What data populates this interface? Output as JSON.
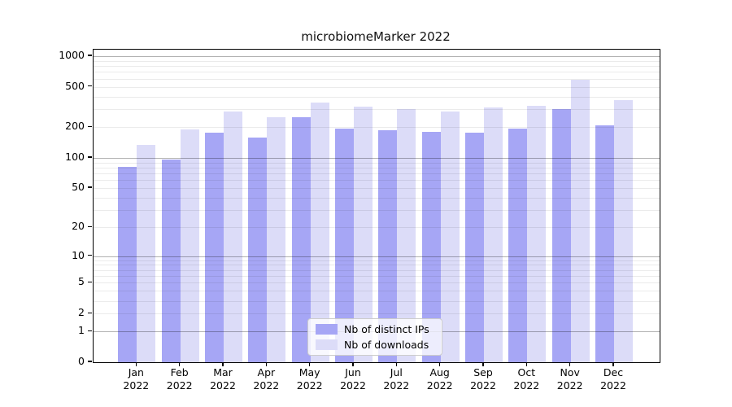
{
  "title": "microbiomeMarker 2022",
  "legend": {
    "items": [
      {
        "label": "Nb of distinct IPs",
        "color": "#a6a6f5"
      },
      {
        "label": "Nb of downloads",
        "color": "#dcdcf8"
      }
    ]
  },
  "axes": {
    "y_tick_labels": [
      "0",
      "1",
      "2",
      "5",
      "10",
      "20",
      "50",
      "100",
      "200",
      "500",
      "1000"
    ],
    "x_year_label": "2022"
  },
  "chart_data": {
    "type": "bar",
    "title": "microbiomeMarker 2022",
    "categories": [
      "Jan 2022",
      "Feb 2022",
      "Mar 2022",
      "Apr 2022",
      "May 2022",
      "Jun 2022",
      "Jul 2022",
      "Aug 2022",
      "Sep 2022",
      "Oct 2022",
      "Nov 2022",
      "Dec 2022"
    ],
    "months": [
      "Jan",
      "Feb",
      "Mar",
      "Apr",
      "May",
      "Jun",
      "Jul",
      "Aug",
      "Sep",
      "Oct",
      "Nov",
      "Dec"
    ],
    "year": "2022",
    "series": [
      {
        "name": "Nb of distinct IPs",
        "color": "#a6a6f5",
        "values": [
          82,
          97,
          176,
          158,
          252,
          193,
          188,
          181,
          177,
          196,
          300,
          210
        ]
      },
      {
        "name": "Nb of downloads",
        "color": "#dcdcf8",
        "values": [
          133,
          190,
          286,
          250,
          348,
          319,
          302,
          287,
          311,
          323,
          585,
          372
        ]
      }
    ],
    "xlabel": "",
    "ylabel": "",
    "yscale": "log1p",
    "yticks": [
      0,
      1,
      2,
      5,
      10,
      20,
      50,
      100,
      200,
      500,
      1000
    ],
    "minor_gridlines": [
      2,
      3,
      4,
      5,
      6,
      7,
      8,
      9,
      20,
      30,
      40,
      50,
      60,
      70,
      80,
      90,
      200,
      300,
      400,
      500,
      600,
      700,
      800,
      900
    ],
    "major_gridlines": [
      1,
      10,
      100,
      1000
    ],
    "ylim": [
      0,
      1150
    ],
    "grid": "horizontal",
    "legend_position": "lower center"
  }
}
